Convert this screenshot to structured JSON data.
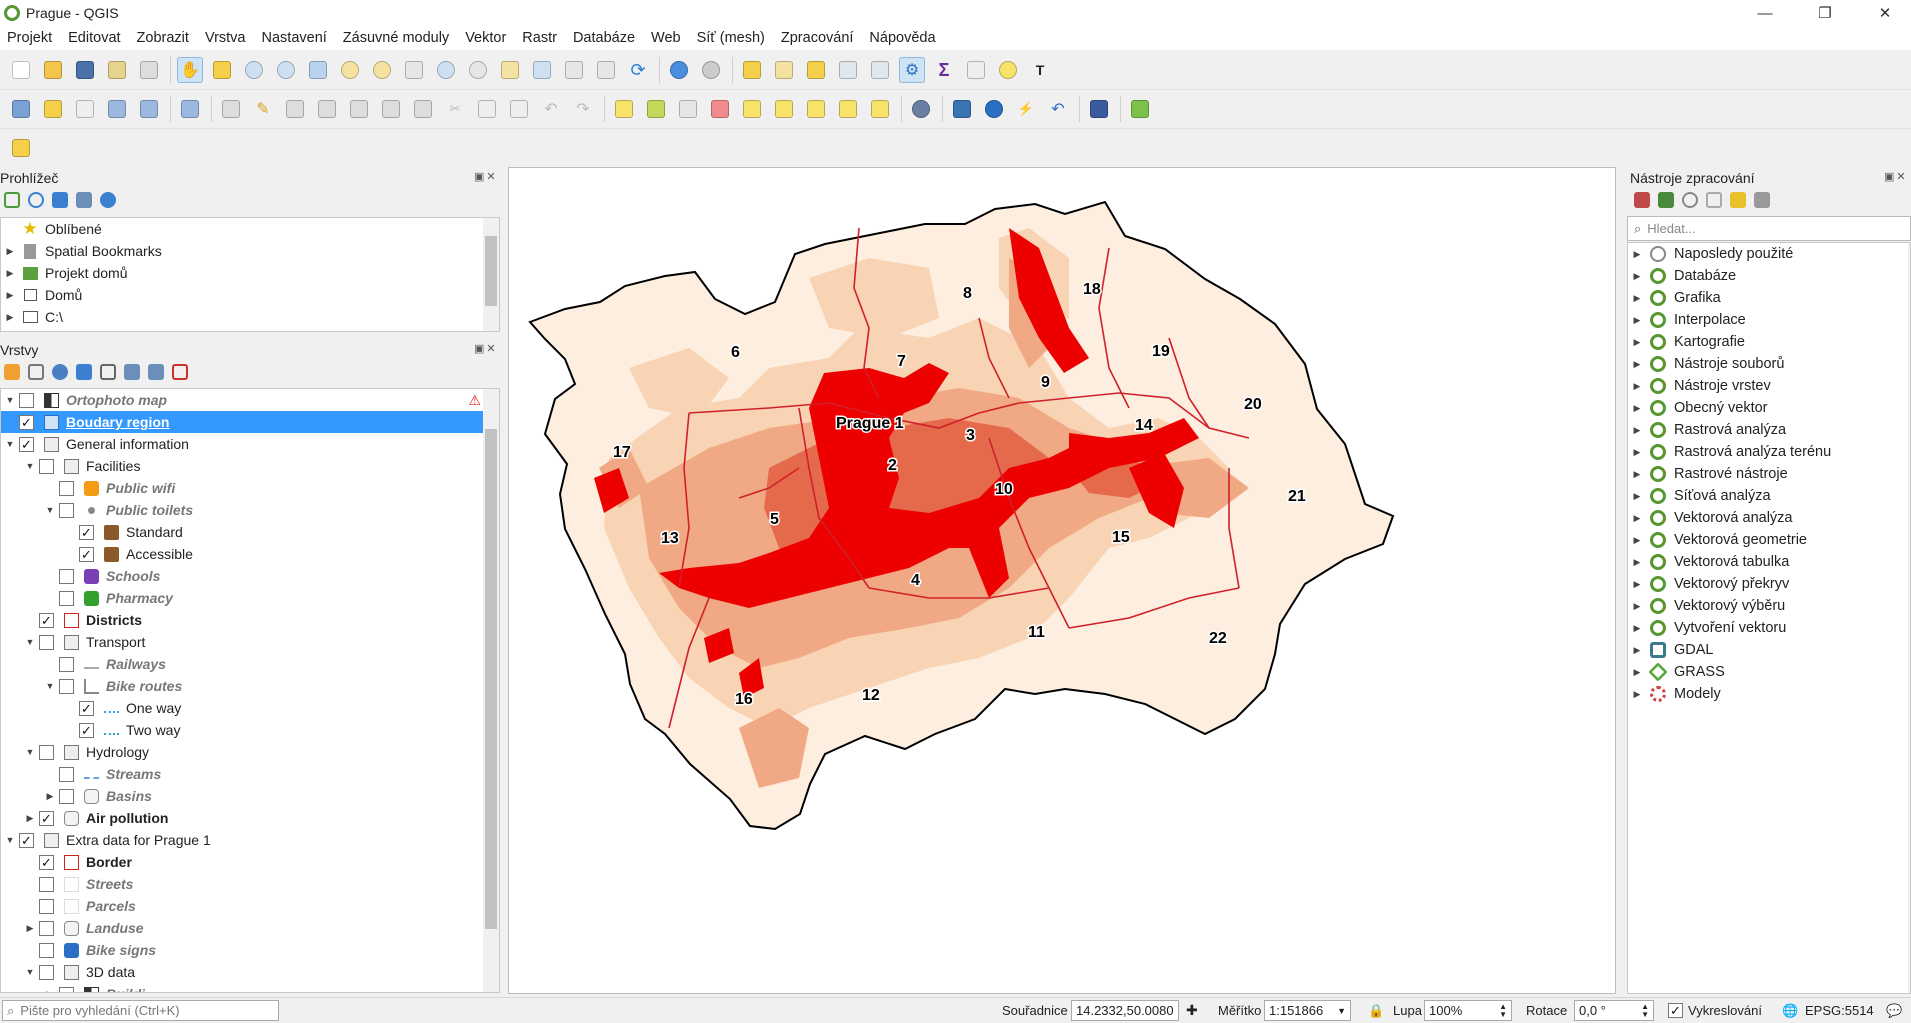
{
  "window": {
    "title": "Prague - QGIS",
    "minimize": "—",
    "maximize": "❐",
    "close": "✕"
  },
  "menu": [
    "Projekt",
    "Editovat",
    "Zobrazit",
    "Vrstva",
    "Nastavení",
    "Zásuvné moduly",
    "Vektor",
    "Rastr",
    "Databáze",
    "Web",
    "Síť (mesh)",
    "Zpracování",
    "Nápověda"
  ],
  "browser": {
    "title": "Prohlížeč",
    "items": [
      {
        "label": "Oblíbené",
        "icon": "star-icon",
        "expandable": false
      },
      {
        "label": "Spatial Bookmarks",
        "icon": "bookmark-icon",
        "expandable": true
      },
      {
        "label": "Projekt domů",
        "icon": "project-home-icon",
        "expandable": true
      },
      {
        "label": "Domů",
        "icon": "home-icon",
        "expandable": true
      },
      {
        "label": "C:\\",
        "icon": "drive-icon",
        "expandable": true
      }
    ]
  },
  "layers": {
    "title": "Vrstvy",
    "items": [
      {
        "label": "Ortophoto map",
        "level": 0,
        "expander": "down",
        "checked": false,
        "icon": "raster-icon",
        "style": "italic",
        "warning": true
      },
      {
        "label": "Boudary region",
        "level": 0,
        "expander": "none",
        "checked": true,
        "icon": "polygon-blue-icon",
        "style": "bold",
        "selected": true
      },
      {
        "label": "General information",
        "level": 0,
        "expander": "down",
        "checked": true,
        "icon": "group-icon",
        "style": "normal"
      },
      {
        "label": "Facilities",
        "level": 1,
        "expander": "down",
        "checked": false,
        "icon": "group-icon",
        "style": "normal"
      },
      {
        "label": "Public wifi",
        "level": 2,
        "expander": "none",
        "checked": false,
        "icon": "wifi-icon",
        "style": "italic"
      },
      {
        "label": "Public toilets",
        "level": 2,
        "expander": "down",
        "checked": false,
        "icon": "points-icon",
        "style": "italic"
      },
      {
        "label": "Standard",
        "level": 3,
        "expander": "none",
        "checked": true,
        "icon": "toilet-icon",
        "style": "normal"
      },
      {
        "label": "Accessible",
        "level": 3,
        "expander": "none",
        "checked": true,
        "icon": "accessible-icon",
        "style": "normal"
      },
      {
        "label": "Schools",
        "level": 2,
        "expander": "none",
        "checked": false,
        "icon": "school-icon",
        "style": "italic"
      },
      {
        "label": "Pharmacy",
        "level": 2,
        "expander": "none",
        "checked": false,
        "icon": "pharmacy-icon",
        "style": "italic"
      },
      {
        "label": "Districts",
        "level": 1,
        "expander": "none",
        "checked": true,
        "icon": "polygon-red-icon",
        "style": "bold"
      },
      {
        "label": "Transport",
        "level": 1,
        "expander": "down",
        "checked": false,
        "icon": "group-icon",
        "style": "normal"
      },
      {
        "label": "Railways",
        "level": 2,
        "expander": "none",
        "checked": false,
        "icon": "line-icon",
        "style": "italic"
      },
      {
        "label": "Bike routes",
        "level": 2,
        "expander": "down",
        "checked": false,
        "icon": "line-rule-icon",
        "style": "italic"
      },
      {
        "label": "One way",
        "level": 3,
        "expander": "none",
        "checked": true,
        "icon": "dotted-line-icon",
        "style": "normal"
      },
      {
        "label": "Two way",
        "level": 3,
        "expander": "none",
        "checked": true,
        "icon": "dotted-line-icon",
        "style": "normal"
      },
      {
        "label": "Hydrology",
        "level": 1,
        "expander": "down",
        "checked": false,
        "icon": "group-icon",
        "style": "normal"
      },
      {
        "label": "Streams",
        "level": 2,
        "expander": "none",
        "checked": false,
        "icon": "stream-icon",
        "style": "italic"
      },
      {
        "label": "Basins",
        "level": 2,
        "expander": "right",
        "checked": false,
        "icon": "polygon-gray-icon",
        "style": "italic"
      },
      {
        "label": "Air pollution",
        "level": 1,
        "expander": "right",
        "checked": true,
        "icon": "polygon-gray-icon",
        "style": "bold"
      },
      {
        "label": "Extra data for Prague 1",
        "level": 0,
        "expander": "down",
        "checked": true,
        "icon": "group-icon",
        "style": "normal"
      },
      {
        "label": "Border",
        "level": 1,
        "expander": "none",
        "checked": true,
        "icon": "polygon-red-icon",
        "style": "bold"
      },
      {
        "label": "Streets",
        "level": 1,
        "expander": "none",
        "checked": false,
        "icon": "none",
        "style": "italic"
      },
      {
        "label": "Parcels",
        "level": 1,
        "expander": "none",
        "checked": false,
        "icon": "none",
        "style": "italic"
      },
      {
        "label": "Landuse",
        "level": 1,
        "expander": "right",
        "checked": false,
        "icon": "polygon-gray-icon",
        "style": "italic"
      },
      {
        "label": "Bike signs",
        "level": 1,
        "expander": "none",
        "checked": false,
        "icon": "bike-icon",
        "style": "italic"
      },
      {
        "label": "3D data",
        "level": 1,
        "expander": "down",
        "checked": false,
        "icon": "group-icon",
        "style": "normal"
      },
      {
        "label": "Buildi...",
        "level": 2,
        "expander": "right",
        "checked": false,
        "icon": "raster-icon",
        "style": "italic"
      }
    ]
  },
  "map": {
    "districts": [
      {
        "label": "Prague 1"
      },
      {
        "label": "2"
      },
      {
        "label": "3"
      },
      {
        "label": "4"
      },
      {
        "label": "5"
      },
      {
        "label": "6"
      },
      {
        "label": "7"
      },
      {
        "label": "8"
      },
      {
        "label": "9"
      },
      {
        "label": "10"
      },
      {
        "label": "11"
      },
      {
        "label": "12"
      },
      {
        "label": "13"
      },
      {
        "label": "14"
      },
      {
        "label": "15"
      },
      {
        "label": "16"
      },
      {
        "label": "17"
      },
      {
        "label": "18"
      },
      {
        "label": "19"
      },
      {
        "label": "20"
      },
      {
        "label": "21"
      },
      {
        "label": "22"
      }
    ],
    "colors": {
      "lightest": "#fdeee0",
      "light": "#f9d4b4",
      "mid": "#f1a985",
      "high": "#e46a4b",
      "max": "#ec0000",
      "border": "#d0202a",
      "outline": "#000000"
    }
  },
  "processing": {
    "title": "Nástroje zpracování",
    "search_placeholder": "Hledat...",
    "items": [
      {
        "label": "Naposledy použité",
        "icon": "clock-icon"
      },
      {
        "label": "Databáze",
        "icon": "qgis-icon"
      },
      {
        "label": "Grafika",
        "icon": "qgis-icon"
      },
      {
        "label": "Interpolace",
        "icon": "qgis-icon"
      },
      {
        "label": "Kartografie",
        "icon": "qgis-icon"
      },
      {
        "label": "Nástroje souborů",
        "icon": "qgis-icon"
      },
      {
        "label": "Nástroje vrstev",
        "icon": "qgis-icon"
      },
      {
        "label": "Obecný vektor",
        "icon": "qgis-icon"
      },
      {
        "label": "Rastrová analýza",
        "icon": "qgis-icon"
      },
      {
        "label": "Rastrová analýza terénu",
        "icon": "qgis-icon"
      },
      {
        "label": "Rastrové nástroje",
        "icon": "qgis-icon"
      },
      {
        "label": "Síťová analýza",
        "icon": "qgis-icon"
      },
      {
        "label": "Vektorová analýza",
        "icon": "qgis-icon"
      },
      {
        "label": "Vektorová geometrie",
        "icon": "qgis-icon"
      },
      {
        "label": "Vektorová tabulka",
        "icon": "qgis-icon"
      },
      {
        "label": "Vektorový překryv",
        "icon": "qgis-icon"
      },
      {
        "label": "Vektorový výběru",
        "icon": "qgis-icon"
      },
      {
        "label": "Vytvoření vektoru",
        "icon": "qgis-icon"
      },
      {
        "label": "GDAL",
        "icon": "gdal-icon"
      },
      {
        "label": "GRASS",
        "icon": "grass-icon"
      },
      {
        "label": "Modely",
        "icon": "models-icon"
      }
    ]
  },
  "statusbar": {
    "search_placeholder": "Pište pro vyhledání (Ctrl+K)",
    "coord_label": "Souřadnice",
    "coord_value": "14.2332,50.0080",
    "scale_label": "Měřítko",
    "scale_value": "1:151866",
    "magnifier_label": "Lupa",
    "magnifier_value": "100%",
    "rotation_label": "Rotace",
    "rotation_value": "0,0 °",
    "render_label": "Vykreslování",
    "render_checked": true,
    "crs": "EPSG:5514"
  }
}
